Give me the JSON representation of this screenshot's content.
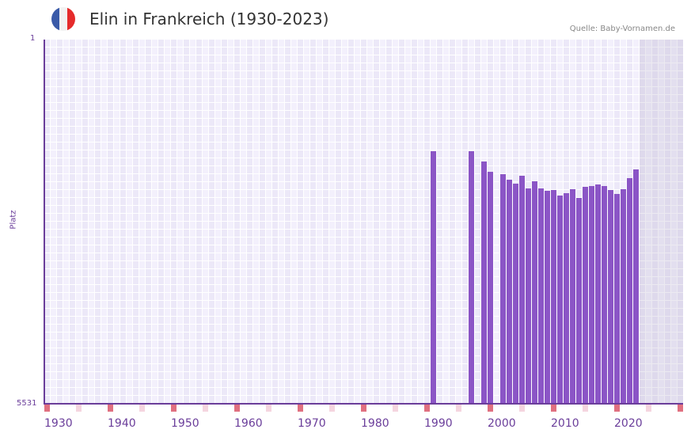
{
  "header": {
    "title": "Elin in Frankreich (1930-2023)",
    "source": "Quelle: Baby-Vornamen.de",
    "flag": {
      "name": "france-flag-icon",
      "colors": [
        "#3a5aa8",
        "#f2f2f2",
        "#e52b2b"
      ]
    }
  },
  "axis": {
    "y_title": "Platz",
    "y_top": "1",
    "y_bottom": "5531",
    "x_ticks": [
      "1930",
      "1940",
      "1950",
      "1960",
      "1970",
      "1980",
      "1990",
      "2000",
      "2010",
      "2020"
    ]
  },
  "colors": {
    "bar": "#8b55c6",
    "axis": "#6a3d9a",
    "decade_marker": "#e07080",
    "half_decade_marker": "#f5d5df"
  },
  "chart_data": {
    "type": "bar",
    "title": "Elin in Frankreich (1930-2023)",
    "xlabel": "",
    "ylabel": "Platz",
    "ylim": [
      5531,
      1
    ],
    "y_inverted": true,
    "x_range": [
      1930,
      2030
    ],
    "projection_shaded_from": 2024,
    "categories": [
      1991,
      1997,
      1999,
      2000,
      2002,
      2003,
      2004,
      2005,
      2006,
      2007,
      2008,
      2009,
      2010,
      2011,
      2012,
      2013,
      2014,
      2015,
      2016,
      2017,
      2018,
      2019,
      2020,
      2021,
      2022,
      2023
    ],
    "values": [
      1692,
      1692,
      1849,
      2005,
      2041,
      2125,
      2185,
      2065,
      2258,
      2149,
      2258,
      2294,
      2282,
      2366,
      2330,
      2270,
      2402,
      2233,
      2221,
      2197,
      2221,
      2282,
      2342,
      2270,
      2102,
      1969
    ],
    "grid": true,
    "legend": null
  }
}
